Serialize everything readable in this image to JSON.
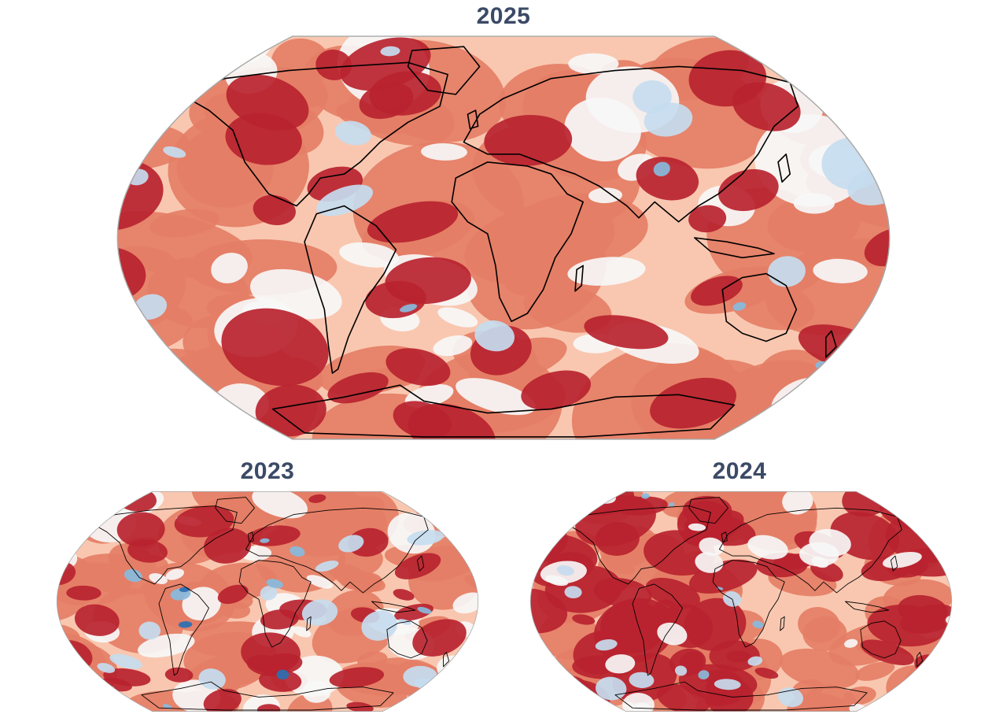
{
  "maps": {
    "main": {
      "title": "2025"
    },
    "left": {
      "title": "2023"
    },
    "right": {
      "title": "2024"
    }
  },
  "colors": {
    "ocean_outline": "#a8a8a8",
    "neutral": "#f7f7f7",
    "warm_light": "#f9c7b0",
    "warm_mid": "#e57e66",
    "warm_strong": "#b8232f",
    "cool_light": "#c6dcef",
    "cool_mid": "#88bbdd",
    "cool_strong": "#2a70b3",
    "coastline": "#000000",
    "title": "#3b4a66"
  },
  "icons": {
    "projection": "robinson-world-map"
  }
}
